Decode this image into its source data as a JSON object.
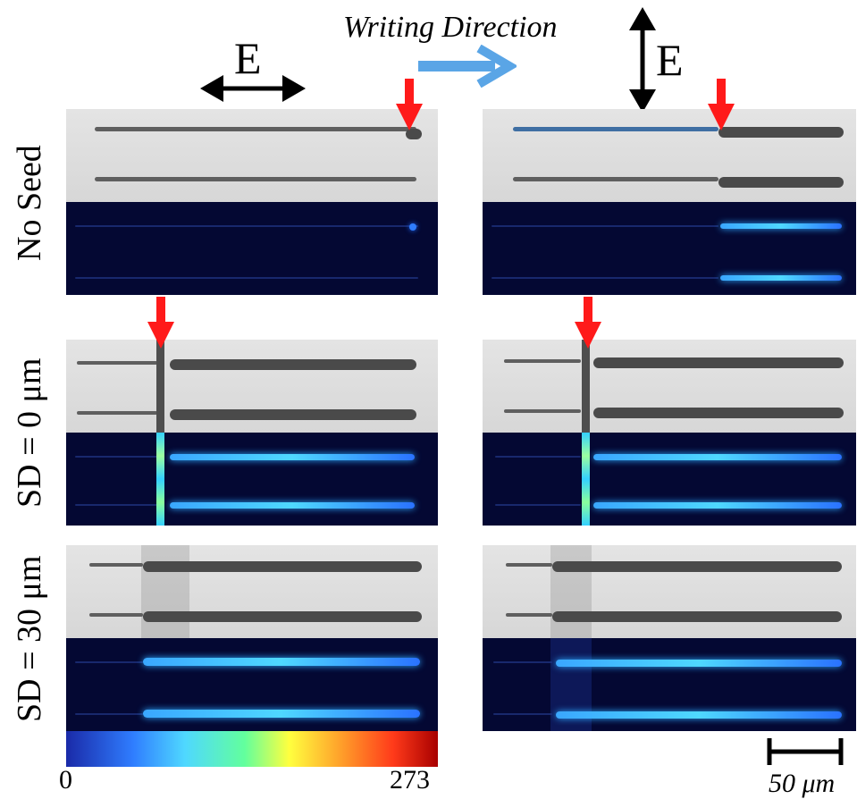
{
  "top": {
    "e_label_left": "E",
    "e_label_right": "E",
    "writing_direction": "Writing Direction"
  },
  "rows": [
    {
      "label": "No Seed"
    },
    {
      "label": "SD = 0 μm"
    },
    {
      "label": "SD = 30 μm"
    }
  ],
  "colorbar": {
    "min": "0",
    "max": "273",
    "colors": [
      "#1a2aa8",
      "#2f7dff",
      "#4fd8ff",
      "#62ff9d",
      "#ffff3f",
      "#ff9f2a",
      "#ff3a1a",
      "#a80000"
    ]
  },
  "scalebar": {
    "label": "50 μm"
  },
  "colors": {
    "arrow_red": "#ff1a1a",
    "arrow_blue": "#5aa5e6",
    "fluo_bg": "#040833"
  }
}
